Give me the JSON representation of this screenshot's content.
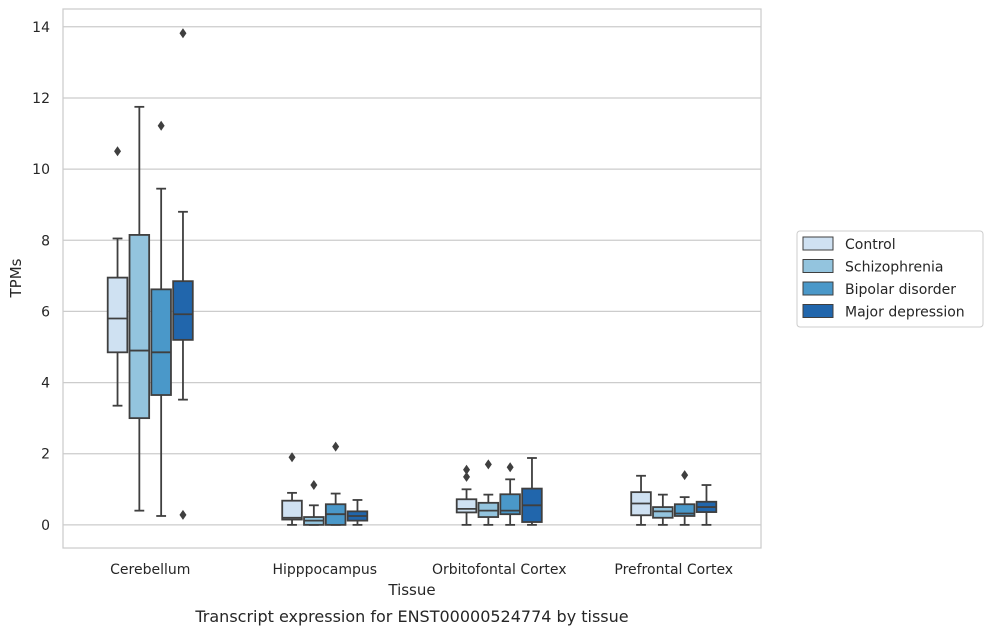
{
  "chart_data": {
    "type": "boxplot",
    "xlabel": "Tissue",
    "ylabel": "TPMs",
    "caption": "Transcript expression for ENST00000524774 by tissue",
    "ylim": [
      -0.65,
      14.5
    ],
    "yticks": [
      0,
      2,
      4,
      6,
      8,
      10,
      12,
      14
    ],
    "grid": "horizontal",
    "legend_position": "right",
    "categories": [
      "Cerebellum",
      "Hipppocampus",
      "Orbitofontal Cortex",
      "Prefrontal Cortex"
    ],
    "series": [
      {
        "name": "Control",
        "color": "#cfe1f2",
        "boxes": [
          {
            "whislo": 3.35,
            "q1": 4.85,
            "med": 5.8,
            "q3": 6.95,
            "whishi": 8.05,
            "fliers": [
              10.5
            ]
          },
          {
            "whislo": 0.0,
            "q1": 0.15,
            "med": 0.2,
            "q3": 0.68,
            "whishi": 0.9,
            "fliers": [
              1.9
            ]
          },
          {
            "whislo": 0.0,
            "q1": 0.35,
            "med": 0.45,
            "q3": 0.72,
            "whishi": 1.0,
            "fliers": [
              1.35,
              1.55
            ]
          },
          {
            "whislo": 0.0,
            "q1": 0.27,
            "med": 0.6,
            "q3": 0.92,
            "whishi": 1.38,
            "fliers": []
          }
        ]
      },
      {
        "name": "Schizophrenia",
        "color": "#93c4de",
        "boxes": [
          {
            "whislo": 0.4,
            "q1": 3.0,
            "med": 4.9,
            "q3": 8.15,
            "whishi": 11.75,
            "fliers": []
          },
          {
            "whislo": 0.0,
            "q1": 0.0,
            "med": 0.12,
            "q3": 0.22,
            "whishi": 0.55,
            "fliers": [
              1.12
            ]
          },
          {
            "whislo": 0.0,
            "q1": 0.22,
            "med": 0.4,
            "q3": 0.62,
            "whishi": 0.85,
            "fliers": [
              1.7
            ]
          },
          {
            "whislo": 0.0,
            "q1": 0.2,
            "med": 0.38,
            "q3": 0.5,
            "whishi": 0.85,
            "fliers": []
          }
        ]
      },
      {
        "name": "Bipolar disorder",
        "color": "#4a98c9",
        "boxes": [
          {
            "whislo": 0.25,
            "q1": 3.65,
            "med": 4.85,
            "q3": 6.62,
            "whishi": 9.45,
            "fliers": [
              11.22
            ]
          },
          {
            "whislo": 0.0,
            "q1": 0.0,
            "med": 0.3,
            "q3": 0.58,
            "whishi": 0.88,
            "fliers": [
              2.2
            ]
          },
          {
            "whislo": 0.0,
            "q1": 0.3,
            "med": 0.4,
            "q3": 0.86,
            "whishi": 1.28,
            "fliers": [
              1.62
            ]
          },
          {
            "whislo": 0.0,
            "q1": 0.25,
            "med": 0.32,
            "q3": 0.58,
            "whishi": 0.78,
            "fliers": [
              1.4
            ]
          }
        ]
      },
      {
        "name": "Major depression",
        "color": "#2166ac",
        "boxes": [
          {
            "whislo": 3.52,
            "q1": 5.2,
            "med": 5.92,
            "q3": 6.85,
            "whishi": 8.8,
            "fliers": [
              13.82,
              0.28
            ]
          },
          {
            "whislo": 0.0,
            "q1": 0.12,
            "med": 0.25,
            "q3": 0.38,
            "whishi": 0.7,
            "fliers": []
          },
          {
            "whislo": 0.0,
            "q1": 0.08,
            "med": 0.55,
            "q3": 1.02,
            "whishi": 1.88,
            "fliers": []
          },
          {
            "whislo": 0.0,
            "q1": 0.36,
            "med": 0.5,
            "q3": 0.65,
            "whishi": 1.12,
            "fliers": []
          }
        ]
      }
    ]
  }
}
